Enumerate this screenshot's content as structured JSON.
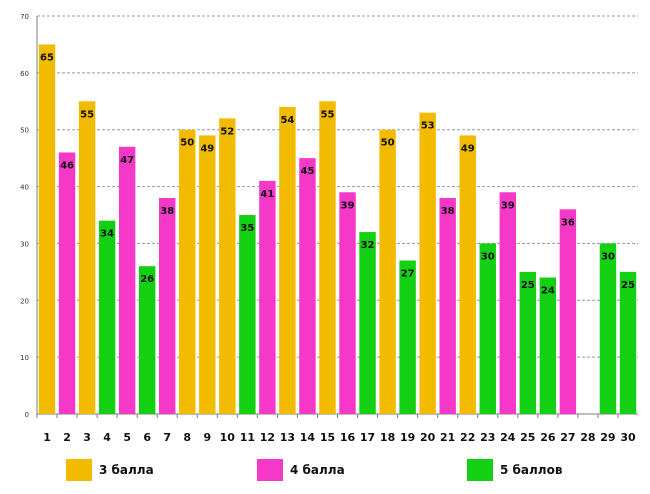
{
  "chart_data": {
    "type": "bar",
    "categories": [
      "1",
      "2",
      "3",
      "4",
      "5",
      "6",
      "7",
      "8",
      "9",
      "10",
      "11",
      "12",
      "13",
      "14",
      "15",
      "16",
      "17",
      "18",
      "19",
      "20",
      "21",
      "22",
      "23",
      "24",
      "25",
      "26",
      "27",
      "28",
      "29",
      "30"
    ],
    "series": [
      {
        "name": "bars",
        "values": [
          65,
          46,
          55,
          34,
          47,
          26,
          38,
          50,
          49,
          52,
          35,
          41,
          54,
          45,
          55,
          39,
          32,
          50,
          27,
          53,
          38,
          49,
          30,
          39,
          25,
          24,
          36,
          null,
          30,
          25
        ],
        "groups": [
          "3",
          "4",
          "3",
          "5",
          "4",
          "5",
          "4",
          "3",
          "3",
          "3",
          "5",
          "4",
          "3",
          "4",
          "3",
          "4",
          "5",
          "3",
          "5",
          "3",
          "4",
          "3",
          "5",
          "4",
          "5",
          "5",
          "4",
          "",
          "5",
          "5"
        ]
      }
    ],
    "ylim": [
      0,
      70
    ],
    "yticks": [
      0,
      10,
      20,
      30,
      40,
      50,
      60,
      70
    ],
    "grid": true,
    "legend": [
      {
        "key": "3",
        "label": "3 балла",
        "color": "#f2bb00"
      },
      {
        "key": "4",
        "label": "4 балла",
        "color": "#f538c8"
      },
      {
        "key": "5",
        "label": "5 баллов",
        "color": "#13d013"
      }
    ]
  }
}
